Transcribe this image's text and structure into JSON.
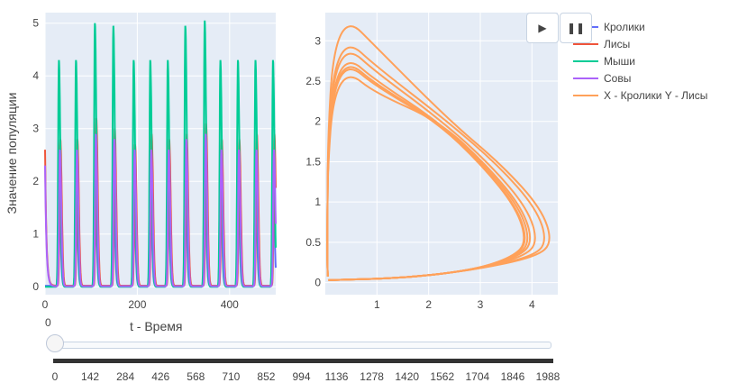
{
  "chart_data": [
    {
      "type": "line",
      "x": [
        0,
        50,
        100,
        150,
        200,
        250,
        300,
        350,
        400,
        450,
        500
      ],
      "xlim": [
        0,
        500
      ],
      "ylim": [
        -0.15,
        5.2
      ],
      "xticks": [
        0,
        200,
        400
      ],
      "yticks": [
        0,
        1,
        2,
        3,
        4,
        5
      ],
      "xlabel": "t - Время",
      "ylabel": "Значение популяции",
      "grid": true,
      "series": [
        {
          "name": "Кролики",
          "color": "#636efa",
          "peak_times": [
            30,
            67,
            108,
            148,
            192,
            228,
            266,
            304,
            346,
            380,
            418,
            456,
            494
          ],
          "peaks": [
            2.0,
            1.9,
            2.0,
            1.9,
            2.0,
            1.9,
            2.0,
            1.9,
            2.0,
            1.9,
            2.0,
            1.9,
            2.0
          ],
          "baseline": 0.02
        },
        {
          "name": "Лисы",
          "color": "#ef553b",
          "peak_times": [
            33,
            70,
            111,
            151,
            195,
            231,
            269,
            307,
            349,
            383,
            421,
            459,
            497
          ],
          "peaks": [
            2.8,
            2.8,
            3.2,
            3.0,
            2.7,
            2.9,
            2.8,
            2.9,
            3.1,
            2.8,
            2.8,
            2.9,
            2.9
          ],
          "baseline": 0.02,
          "start": 2.6
        },
        {
          "name": "Мыши",
          "color": "#00cc96",
          "peak_times": [
            30,
            67,
            108,
            148,
            192,
            228,
            266,
            304,
            346,
            380,
            418,
            456,
            494
          ],
          "peaks": [
            4.3,
            4.3,
            5.0,
            4.95,
            4.3,
            4.3,
            4.3,
            4.95,
            5.05,
            4.3,
            4.3,
            4.3,
            4.3
          ],
          "baseline": 0.0
        },
        {
          "name": "Совы",
          "color": "#ab63fa",
          "peak_times": [
            32,
            69,
            110,
            150,
            194,
            230,
            268,
            306,
            348,
            382,
            420,
            458,
            496
          ],
          "peaks": [
            2.6,
            2.6,
            2.9,
            2.8,
            2.6,
            2.6,
            2.6,
            2.8,
            2.9,
            2.6,
            2.6,
            2.6,
            2.6
          ],
          "baseline": 0.01,
          "start": 2.3
        }
      ]
    },
    {
      "type": "line",
      "xlim": [
        0,
        4.5
      ],
      "ylim": [
        -0.15,
        3.35
      ],
      "xticks": [
        1,
        2,
        3,
        4
      ],
      "yticks": [
        0,
        0.5,
        1,
        1.5,
        2,
        2.5,
        3
      ],
      "grid": true,
      "series": [
        {
          "name": "X - Кролики Y - Лисы",
          "color": "#ffa15a",
          "loops": [
            {
              "xmax": 3.92,
              "ymax": 2.75,
              "rmin": 0.02
            },
            {
              "xmax": 3.97,
              "ymax": 2.8,
              "rmin": 0.02
            },
            {
              "xmax": 4.02,
              "ymax": 2.62,
              "rmin": 0.02
            },
            {
              "xmax": 4.12,
              "ymax": 2.92,
              "rmin": 0.02
            },
            {
              "xmax": 4.3,
              "ymax": 3.0,
              "rmin": 0.02
            },
            {
              "xmax": 4.4,
              "ymax": 3.27,
              "rmin": 0.02
            },
            {
              "xmax": 3.9,
              "ymax": 2.72,
              "rmin": 0.02
            }
          ]
        }
      ]
    }
  ],
  "legend": {
    "items": [
      {
        "label": "Кролики",
        "color": "#636efa"
      },
      {
        "label": "Лисы",
        "color": "#ef553b"
      },
      {
        "label": "Мыши",
        "color": "#00cc96"
      },
      {
        "label": "Совы",
        "color": "#ab63fa"
      },
      {
        "label": "X - Кролики Y - Лисы",
        "color": "#ffa15a"
      }
    ]
  },
  "controls": {
    "play_icon": "play-icon",
    "pause_icon": "pause-icon",
    "play_glyph": "▶",
    "pause_glyph": "❚❚"
  },
  "slider": {
    "current_value": "0",
    "ticks": [
      "0",
      "142",
      "284",
      "426",
      "568",
      "710",
      "852",
      "994",
      "1136",
      "1278",
      "1420",
      "1562",
      "1704",
      "1846",
      "1988"
    ]
  }
}
